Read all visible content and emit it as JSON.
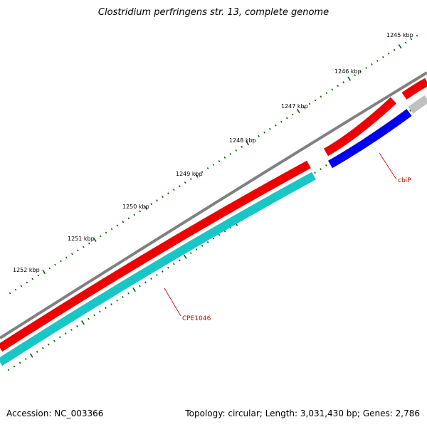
{
  "title": "Clostridium perfringens str. 13, complete genome",
  "accession": "Accession: NC_003366",
  "topology": "Topology: circular; Length: 3,031,430 bp; Genes: 2,786",
  "kbp_labels": [
    "1245 kbp",
    "1246 kbp",
    "1247 kbp",
    "1248 kbp",
    "1249 kbp",
    "1250 kbp",
    "1251 kbp",
    "1252 kbp"
  ],
  "genes": [
    {
      "name": "cbiP",
      "color": "#0000ee"
    },
    {
      "name": "CPE1046",
      "color": "#19c6c6"
    }
  ],
  "colors": {
    "backbone": "#808080",
    "cds": "#ee0000",
    "gene_a": "#0000ee",
    "gene_b": "#19c6c6",
    "other": "#c0c0c0",
    "ticks": "#006400",
    "label": "#cc0000"
  }
}
